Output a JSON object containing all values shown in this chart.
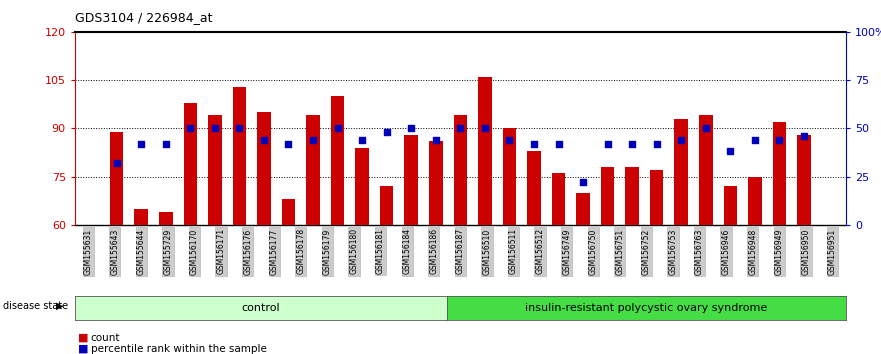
{
  "title": "GDS3104 / 226984_at",
  "samples": [
    "GSM155631",
    "GSM155643",
    "GSM155644",
    "GSM155729",
    "GSM156170",
    "GSM156171",
    "GSM156176",
    "GSM156177",
    "GSM156178",
    "GSM156179",
    "GSM156180",
    "GSM156181",
    "GSM156184",
    "GSM156186",
    "GSM156187",
    "GSM156510",
    "GSM156511",
    "GSM156512",
    "GSM156749",
    "GSM156750",
    "GSM156751",
    "GSM156752",
    "GSM156753",
    "GSM156763",
    "GSM156946",
    "GSM156948",
    "GSM156949",
    "GSM156950",
    "GSM156951"
  ],
  "count_values": [
    89,
    65,
    64,
    98,
    94,
    103,
    95,
    68,
    94,
    100,
    84,
    72,
    88,
    86,
    94,
    106,
    90,
    83,
    76,
    70,
    78,
    78,
    77,
    93,
    94,
    72,
    75,
    92,
    88
  ],
  "percentile_values": [
    32,
    42,
    42,
    50,
    50,
    50,
    44,
    42,
    44,
    50,
    44,
    48,
    50,
    44,
    50,
    50,
    44,
    42,
    42,
    22,
    42,
    42,
    42,
    44,
    50,
    38,
    44,
    44,
    46
  ],
  "group_labels": [
    "control",
    "insulin-resistant polycystic ovary syndrome"
  ],
  "group_control_count": 14,
  "ylim_left": [
    60,
    120
  ],
  "yticks_left": [
    60,
    75,
    90,
    105,
    120
  ],
  "yticks_right": [
    0,
    25,
    50,
    75,
    100
  ],
  "bar_color": "#cc0000",
  "dot_color": "#0000bb",
  "control_bg": "#ccffcc",
  "disease_bg": "#44dd44",
  "label_left_color": "#cc0000",
  "label_right_color": "#0000bb",
  "legend_count_label": "count",
  "legend_pct_label": "percentile rank within the sample",
  "xtick_box_color": "#cccccc"
}
